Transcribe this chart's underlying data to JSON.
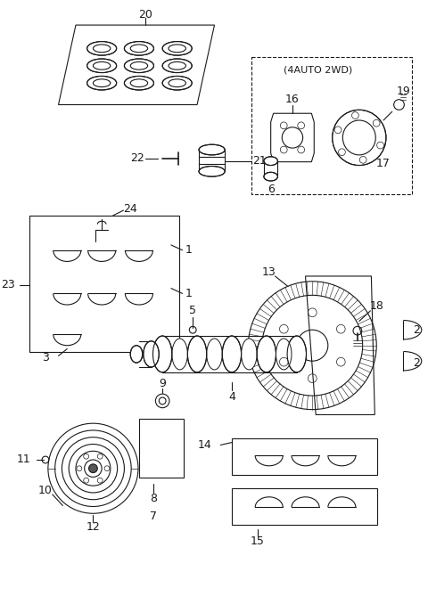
{
  "bg_color": "#ffffff",
  "line_color": "#1a1a1a",
  "fig_width": 4.8,
  "fig_height": 6.88,
  "dpi": 100
}
